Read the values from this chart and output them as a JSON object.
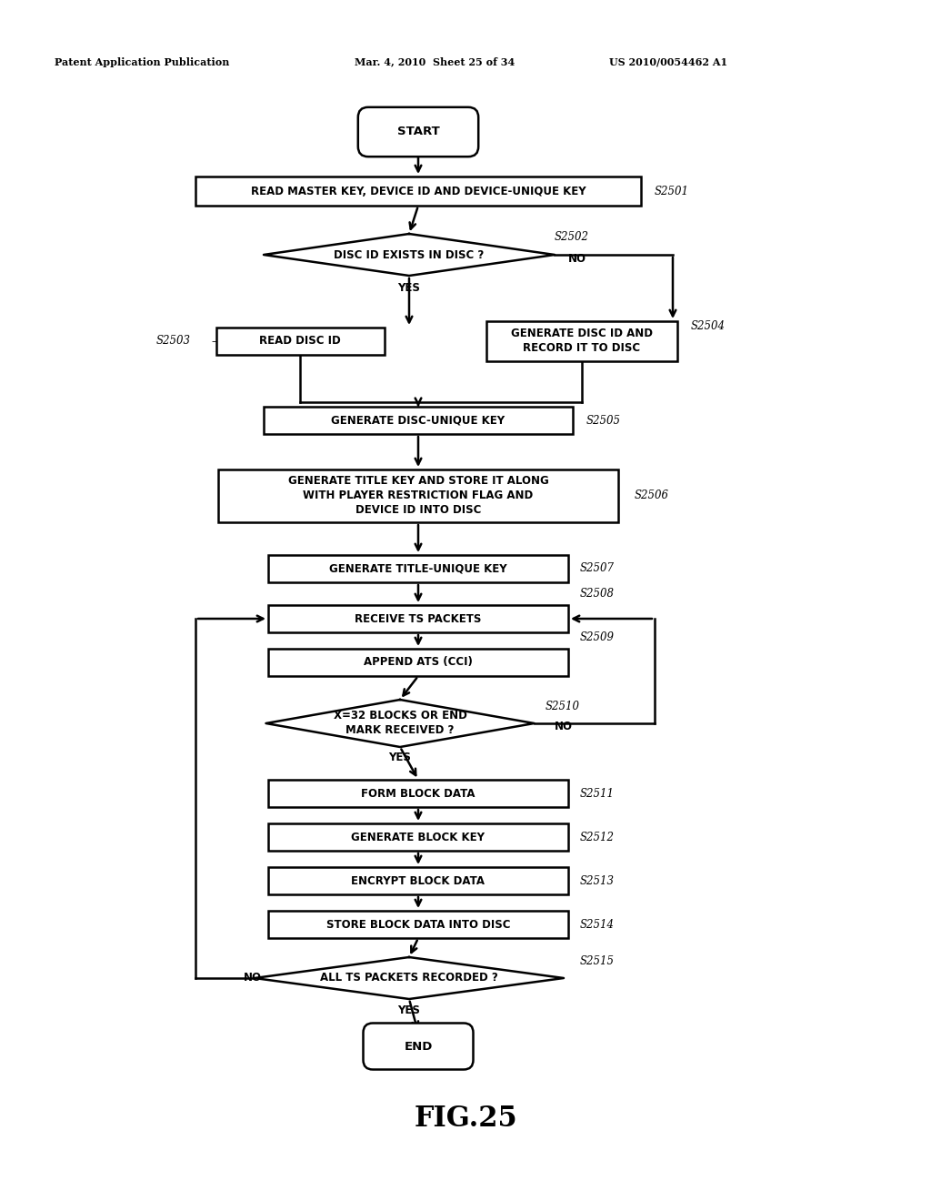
{
  "bg_color": "#ffffff",
  "header_left": "Patent Application Publication",
  "header_mid": "Mar. 4, 2010  Sheet 25 of 34",
  "header_right": "US 2010/0054462 A1",
  "figure_label": "FIG.25",
  "lw": 1.8
}
